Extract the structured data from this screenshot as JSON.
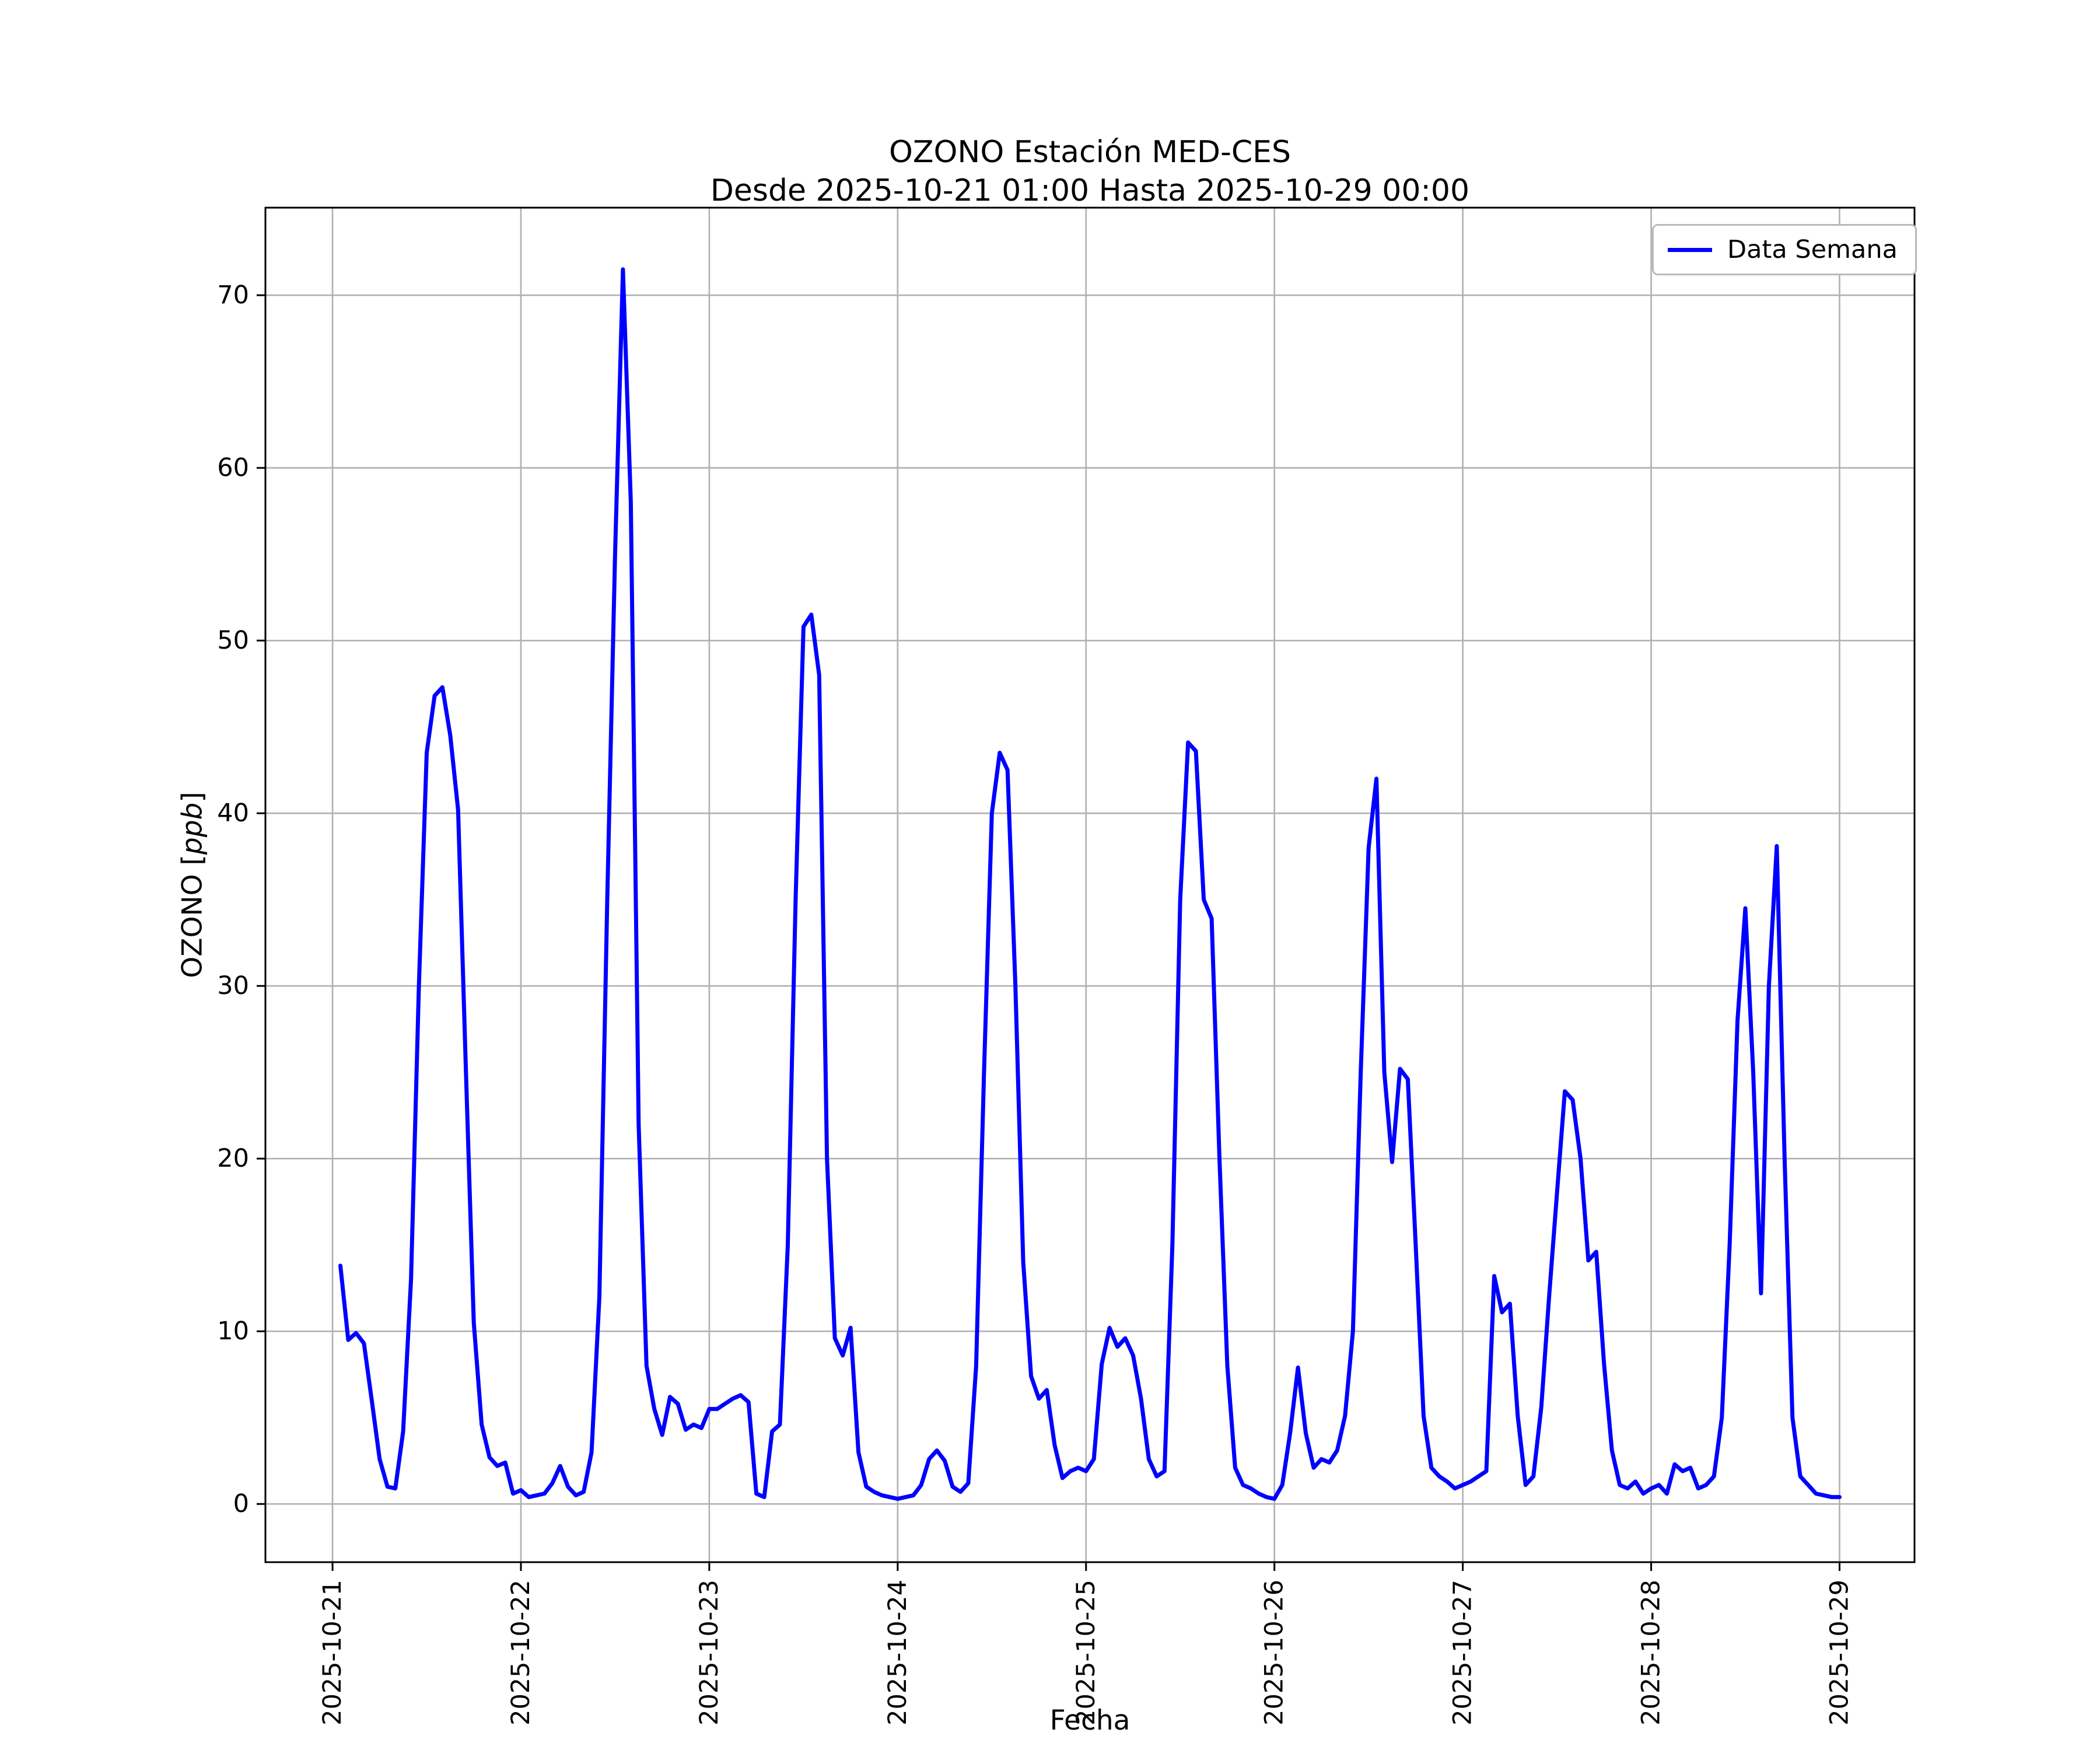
{
  "title": {
    "line1": "OZONO Estación MED-CES",
    "line2": "Desde 2025-10-21 01:00 Hasta 2025-10-29 00:00"
  },
  "ylabel": {
    "text_before": "OZONO [",
    "math": "ppb",
    "text_after": "]"
  },
  "xlabel": "Fecha",
  "legend": {
    "label": "Data Semana"
  },
  "chart_data": {
    "type": "line",
    "title": "OZONO Estación MED-CES",
    "subtitle": "Desde 2025-10-21 01:00 Hasta 2025-10-29 00:00",
    "xlabel": "Fecha",
    "ylabel": "OZONO [ppb]",
    "grid": true,
    "legend_position": "upper right",
    "line_color": "#0000ff",
    "grid_color": "#b0b0b0",
    "x_tick_labels": [
      "2025-10-21",
      "2025-10-22",
      "2025-10-23",
      "2025-10-24",
      "2025-10-25",
      "2025-10-26",
      "2025-10-27",
      "2025-10-28",
      "2025-10-29"
    ],
    "x_ticks_hours": [
      0,
      24,
      48,
      72,
      96,
      120,
      144,
      168,
      192
    ],
    "y_ticks": [
      0,
      10,
      20,
      30,
      40,
      50,
      60,
      70
    ],
    "xlim_hours": [
      -8.55,
      201.55
    ],
    "ylim": [
      -3.37,
      75.07
    ],
    "x_start_hour_offset": 1,
    "x_step_hours": 1,
    "series": [
      {
        "name": "Data Semana",
        "values": [
          13.8,
          9.5,
          9.9,
          9.3,
          6.0,
          2.6,
          1.0,
          0.9,
          4.2,
          13.0,
          30.0,
          43.5,
          46.8,
          47.3,
          44.5,
          40.2,
          25.0,
          10.5,
          4.6,
          2.7,
          2.2,
          2.4,
          0.6,
          0.8,
          0.4,
          0.5,
          0.6,
          1.2,
          2.2,
          1.0,
          0.5,
          0.7,
          3.0,
          12.0,
          35.0,
          55.0,
          71.5,
          58.0,
          22.0,
          8.0,
          5.5,
          4.0,
          6.2,
          5.8,
          4.3,
          4.6,
          4.4,
          5.5,
          5.5,
          5.8,
          6.1,
          6.3,
          5.9,
          0.6,
          0.4,
          4.2,
          4.6,
          15.0,
          35.0,
          50.8,
          51.5,
          48.0,
          20.0,
          9.6,
          8.6,
          10.2,
          3.0,
          1.0,
          0.7,
          0.5,
          0.4,
          0.3,
          0.4,
          0.5,
          1.1,
          2.6,
          3.1,
          2.5,
          1.0,
          0.7,
          1.2,
          8.0,
          25.0,
          40.0,
          43.5,
          42.5,
          30.0,
          14.0,
          7.4,
          6.1,
          6.6,
          3.4,
          1.5,
          1.9,
          2.1,
          1.9,
          2.6,
          8.1,
          10.2,
          9.1,
          9.6,
          8.6,
          6.1,
          2.6,
          1.6,
          1.9,
          15.0,
          35.0,
          44.1,
          43.6,
          35.0,
          33.9,
          20.0,
          8.0,
          2.1,
          1.1,
          0.9,
          0.6,
          0.4,
          0.3,
          1.1,
          4.1,
          7.9,
          4.1,
          2.1,
          2.6,
          2.4,
          3.1,
          5.1,
          10.0,
          25.0,
          38.0,
          42.0,
          25.0,
          19.8,
          25.2,
          24.6,
          15.0,
          5.1,
          2.1,
          1.6,
          1.3,
          0.9,
          1.1,
          1.3,
          1.6,
          1.9,
          13.2,
          11.1,
          11.6,
          5.1,
          1.1,
          1.6,
          5.6,
          12.0,
          18.0,
          23.9,
          23.4,
          20.0,
          14.1,
          14.6,
          8.1,
          3.1,
          1.1,
          0.9,
          1.3,
          0.6,
          0.9,
          1.1,
          0.6,
          2.3,
          1.9,
          2.1,
          0.9,
          1.1,
          1.6,
          5.0,
          15.0,
          28.0,
          34.5,
          25.0,
          12.2,
          30.0,
          38.1,
          20.0,
          5.0,
          1.6,
          1.1,
          0.6,
          0.5,
          0.4,
          0.4
        ]
      }
    ]
  }
}
